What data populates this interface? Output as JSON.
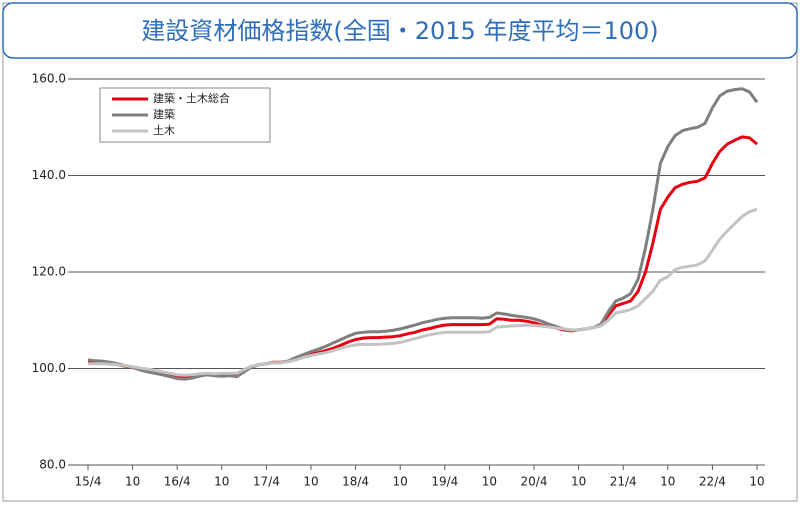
{
  "chart_data": {
    "type": "line",
    "title": "建設資材価格指数(全国・2015 年度平均＝100)",
    "categories": [
      "15/4",
      null,
      null,
      null,
      null,
      null,
      "10",
      null,
      null,
      null,
      null,
      null,
      "16/4",
      null,
      null,
      null,
      null,
      null,
      "10",
      null,
      null,
      null,
      null,
      null,
      "17/4",
      null,
      null,
      null,
      null,
      null,
      "10",
      null,
      null,
      null,
      null,
      null,
      "18/4",
      null,
      null,
      null,
      null,
      null,
      "10",
      null,
      null,
      null,
      null,
      null,
      "19/4",
      null,
      null,
      null,
      null,
      null,
      "10",
      null,
      null,
      null,
      null,
      null,
      "20/4",
      null,
      null,
      null,
      null,
      null,
      "10",
      null,
      null,
      null,
      null,
      null,
      "21/4",
      null,
      null,
      null,
      null,
      null,
      "10",
      null,
      null,
      null,
      null,
      null,
      "22/4",
      null,
      null,
      null,
      null,
      null,
      "10"
    ],
    "series": [
      {
        "name": "建築・土木総合",
        "color": "#e60012",
        "values": [
          101.5,
          101.3,
          101.2,
          101.0,
          100.8,
          100.5,
          100.2,
          99.8,
          99.5,
          99.2,
          99.0,
          98.8,
          98.5,
          98.2,
          98.3,
          98.6,
          98.8,
          98.6,
          98.8,
          98.7,
          98.6,
          99.5,
          100.3,
          100.8,
          101.0,
          101.3,
          101.3,
          101.5,
          102.0,
          102.5,
          103.0,
          103.3,
          103.7,
          104.2,
          104.8,
          105.5,
          106.0,
          106.3,
          106.4,
          106.4,
          106.5,
          106.6,
          106.8,
          107.2,
          107.5,
          108.0,
          108.3,
          108.7,
          109.0,
          109.1,
          109.1,
          109.1,
          109.1,
          109.1,
          109.2,
          110.3,
          110.2,
          110.0,
          110.0,
          109.8,
          109.5,
          109.0,
          108.7,
          108.4,
          108.0,
          107.8,
          108.0,
          108.2,
          108.5,
          109.0,
          111.0,
          113.0,
          113.5,
          114.0,
          116.0,
          120.0,
          126.0,
          133.0,
          135.5,
          137.5,
          138.2,
          138.6,
          138.8,
          139.5,
          142.5,
          145.0,
          146.5,
          147.3,
          148.0,
          147.8,
          146.5
        ]
      },
      {
        "name": "建築",
        "color": "#7f7f7f",
        "values": [
          101.8,
          101.6,
          101.5,
          101.3,
          101.0,
          100.6,
          100.2,
          99.7,
          99.3,
          99.0,
          98.7,
          98.3,
          97.9,
          97.8,
          98.0,
          98.4,
          98.7,
          98.5,
          98.4,
          98.5,
          98.3,
          99.3,
          100.3,
          100.8,
          101.0,
          101.2,
          101.2,
          101.6,
          102.3,
          102.9,
          103.5,
          104.0,
          104.6,
          105.3,
          106.0,
          106.7,
          107.3,
          107.5,
          107.6,
          107.6,
          107.7,
          107.9,
          108.2,
          108.6,
          109.0,
          109.5,
          109.8,
          110.2,
          110.4,
          110.5,
          110.5,
          110.5,
          110.5,
          110.4,
          110.6,
          111.5,
          111.3,
          111.0,
          110.8,
          110.6,
          110.3,
          109.8,
          109.2,
          108.7,
          108.2,
          107.9,
          108.0,
          108.2,
          108.5,
          109.2,
          111.8,
          114.0,
          114.6,
          115.5,
          118.5,
          125.0,
          133.0,
          142.5,
          146.0,
          148.3,
          149.3,
          149.7,
          150.0,
          150.8,
          154.0,
          156.5,
          157.5,
          157.8,
          158.0,
          157.3,
          155.2
        ]
      },
      {
        "name": "土木",
        "color": "#c3c3c3",
        "values": [
          101.0,
          101.0,
          101.0,
          100.9,
          100.8,
          100.6,
          100.4,
          100.1,
          99.9,
          99.6,
          99.3,
          99.0,
          98.7,
          98.6,
          98.7,
          98.9,
          99.0,
          98.9,
          99.0,
          99.0,
          99.0,
          99.8,
          100.5,
          100.8,
          101.0,
          101.2,
          101.2,
          101.4,
          101.8,
          102.3,
          102.7,
          103.0,
          103.3,
          103.7,
          104.2,
          104.6,
          104.9,
          105.0,
          105.0,
          105.0,
          105.1,
          105.2,
          105.4,
          105.8,
          106.2,
          106.6,
          107.0,
          107.3,
          107.5,
          107.5,
          107.5,
          107.5,
          107.5,
          107.5,
          107.6,
          108.6,
          108.7,
          108.8,
          108.9,
          109.0,
          108.9,
          108.8,
          108.6,
          108.4,
          108.2,
          108.0,
          108.0,
          108.2,
          108.5,
          108.8,
          110.0,
          111.5,
          111.8,
          112.2,
          113.0,
          114.5,
          116.0,
          118.3,
          119.0,
          120.5,
          121.0,
          121.2,
          121.5,
          122.3,
          124.5,
          126.8,
          128.5,
          130.0,
          131.5,
          132.5,
          133.0
        ]
      }
    ],
    "ylim": [
      80,
      160
    ],
    "yticks": [
      {
        "value": 80,
        "label": "80.0"
      },
      {
        "value": 100,
        "label": "100.0"
      },
      {
        "value": 120,
        "label": "120.0"
      },
      {
        "value": 140,
        "label": "140.0"
      },
      {
        "value": 160,
        "label": "160.0"
      }
    ],
    "grid": true,
    "legend": "upper left"
  }
}
